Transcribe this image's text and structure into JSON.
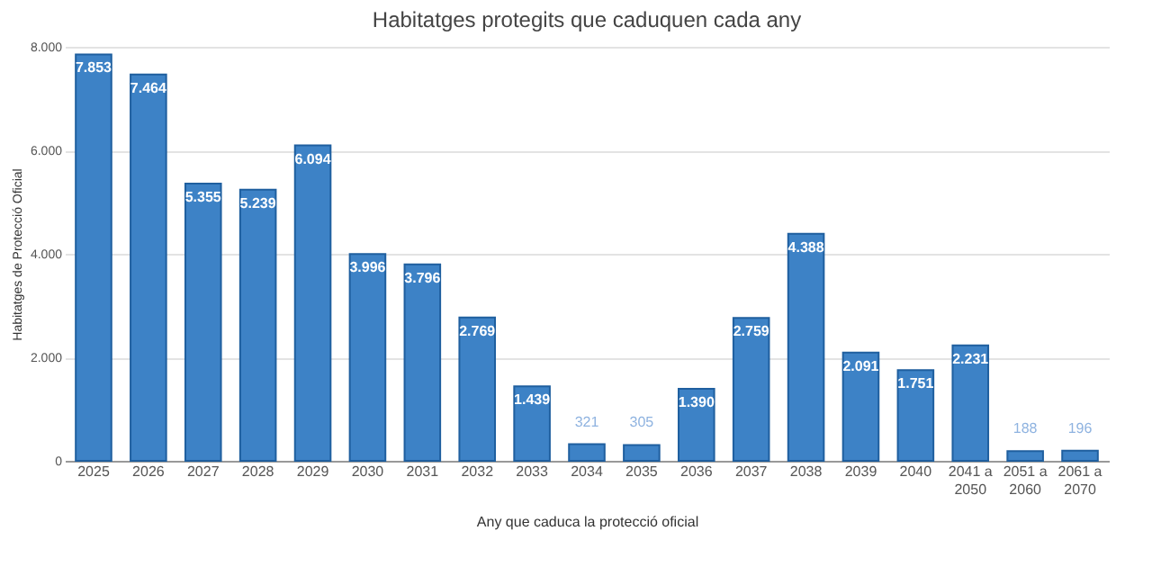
{
  "chart_data": {
    "type": "bar",
    "title": "Habitatges protegits que caduquen cada any",
    "xlabel": "Any que caduca la protecció oficial",
    "ylabel": "Habitatges de Protecció Oficial",
    "categories": [
      "2025",
      "2026",
      "2027",
      "2028",
      "2029",
      "2030",
      "2031",
      "2032",
      "2033",
      "2034",
      "2035",
      "2036",
      "2037",
      "2038",
      "2039",
      "2040",
      "2041 a 2050",
      "2051 a 2060",
      "2061 a 2070"
    ],
    "values": [
      7853,
      7464,
      5355,
      5239,
      6094,
      3996,
      3796,
      2769,
      1439,
      321,
      305,
      1390,
      2759,
      4388,
      2091,
      1751,
      2231,
      188,
      196
    ],
    "value_labels": [
      "7.853",
      "7.464",
      "5.355",
      "5.239",
      "6.094",
      "3.996",
      "3.796",
      "2.769",
      "1.439",
      "321",
      "305",
      "1.390",
      "2.759",
      "4.388",
      "2.091",
      "1.751",
      "2.231",
      "188",
      "196"
    ],
    "color": "#3d82c6",
    "ylim": [
      0,
      8000
    ],
    "yticks": [
      {
        "value": 0,
        "label": "0"
      },
      {
        "value": 2000,
        "label": "2.000"
      },
      {
        "value": 4000,
        "label": "4.000"
      },
      {
        "value": 6000,
        "label": "6.000"
      },
      {
        "value": 8000,
        "label": "8.000"
      }
    ],
    "grid": "y"
  }
}
